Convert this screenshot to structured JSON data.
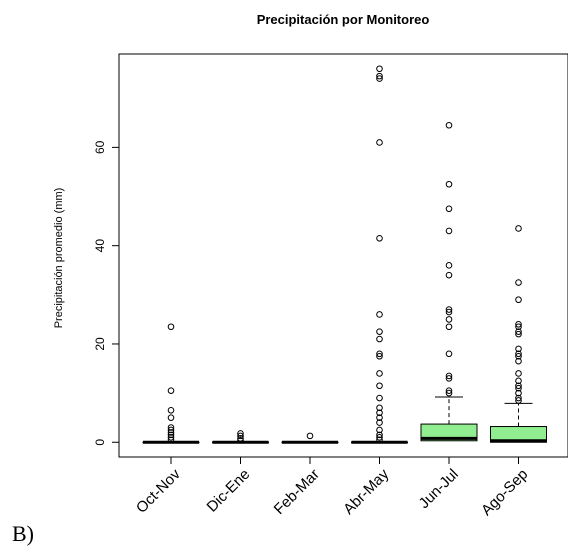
{
  "panel_label": "B)",
  "chart_data": {
    "type": "boxplot",
    "title": "Precipitación por Monitoreo",
    "xlabel": "",
    "ylabel": "Precipitación promedio (mm)",
    "ylim": [
      -3,
      79
    ],
    "yticks": [
      0,
      20,
      40,
      60
    ],
    "categories": [
      "Oct-Nov",
      "Dic-Ene",
      "Feb-Mar",
      "Abr-May",
      "Jun-Jul",
      "Ago-Sep"
    ],
    "fill_color": "#90ee90",
    "series": [
      {
        "category": "Oct-Nov",
        "min": 0,
        "q1": 0,
        "median": 0,
        "q3": 0,
        "max": 0,
        "filled": false,
        "outliers": [
          23.5,
          10.5,
          6.5,
          5,
          3,
          2.5,
          2,
          1.5,
          1,
          0.5
        ]
      },
      {
        "category": "Dic-Ene",
        "min": 0,
        "q1": 0,
        "median": 0,
        "q3": 0,
        "max": 0,
        "filled": false,
        "outliers": [
          1.8,
          1.3,
          0.8,
          0.4
        ]
      },
      {
        "category": "Feb-Mar",
        "min": 0,
        "q1": 0,
        "median": 0,
        "q3": 0,
        "max": 0,
        "filled": false,
        "outliers": [
          1.3
        ]
      },
      {
        "category": "Abr-May",
        "min": 0,
        "q1": 0,
        "median": 0,
        "q3": 0,
        "max": 0,
        "filled": false,
        "outliers": [
          76,
          74.5,
          74,
          61,
          41.5,
          26,
          22.5,
          21,
          18,
          17.5,
          14,
          11.5,
          9,
          7,
          6,
          5,
          4,
          2.5,
          1.5,
          1,
          0.5
        ]
      },
      {
        "category": "Jun-Jul",
        "min": 0,
        "q1": 0.3,
        "median": 0.8,
        "q3": 3.7,
        "max": 9.2,
        "filled": true,
        "outliers": [
          64.5,
          52.5,
          47.5,
          43,
          36,
          34,
          27,
          26.5,
          25,
          23.5,
          18,
          13.5,
          13,
          10.5,
          10
        ]
      },
      {
        "category": "Ago-Sep",
        "min": 0,
        "q1": 0,
        "median": 0.3,
        "q3": 3.2,
        "max": 7.9,
        "filled": true,
        "outliers": [
          43.5,
          32.5,
          29,
          24,
          23.5,
          22.5,
          22,
          19,
          18,
          17.5,
          16.5,
          14,
          12.5,
          11.5,
          11,
          10,
          9,
          8.5
        ]
      }
    ]
  }
}
